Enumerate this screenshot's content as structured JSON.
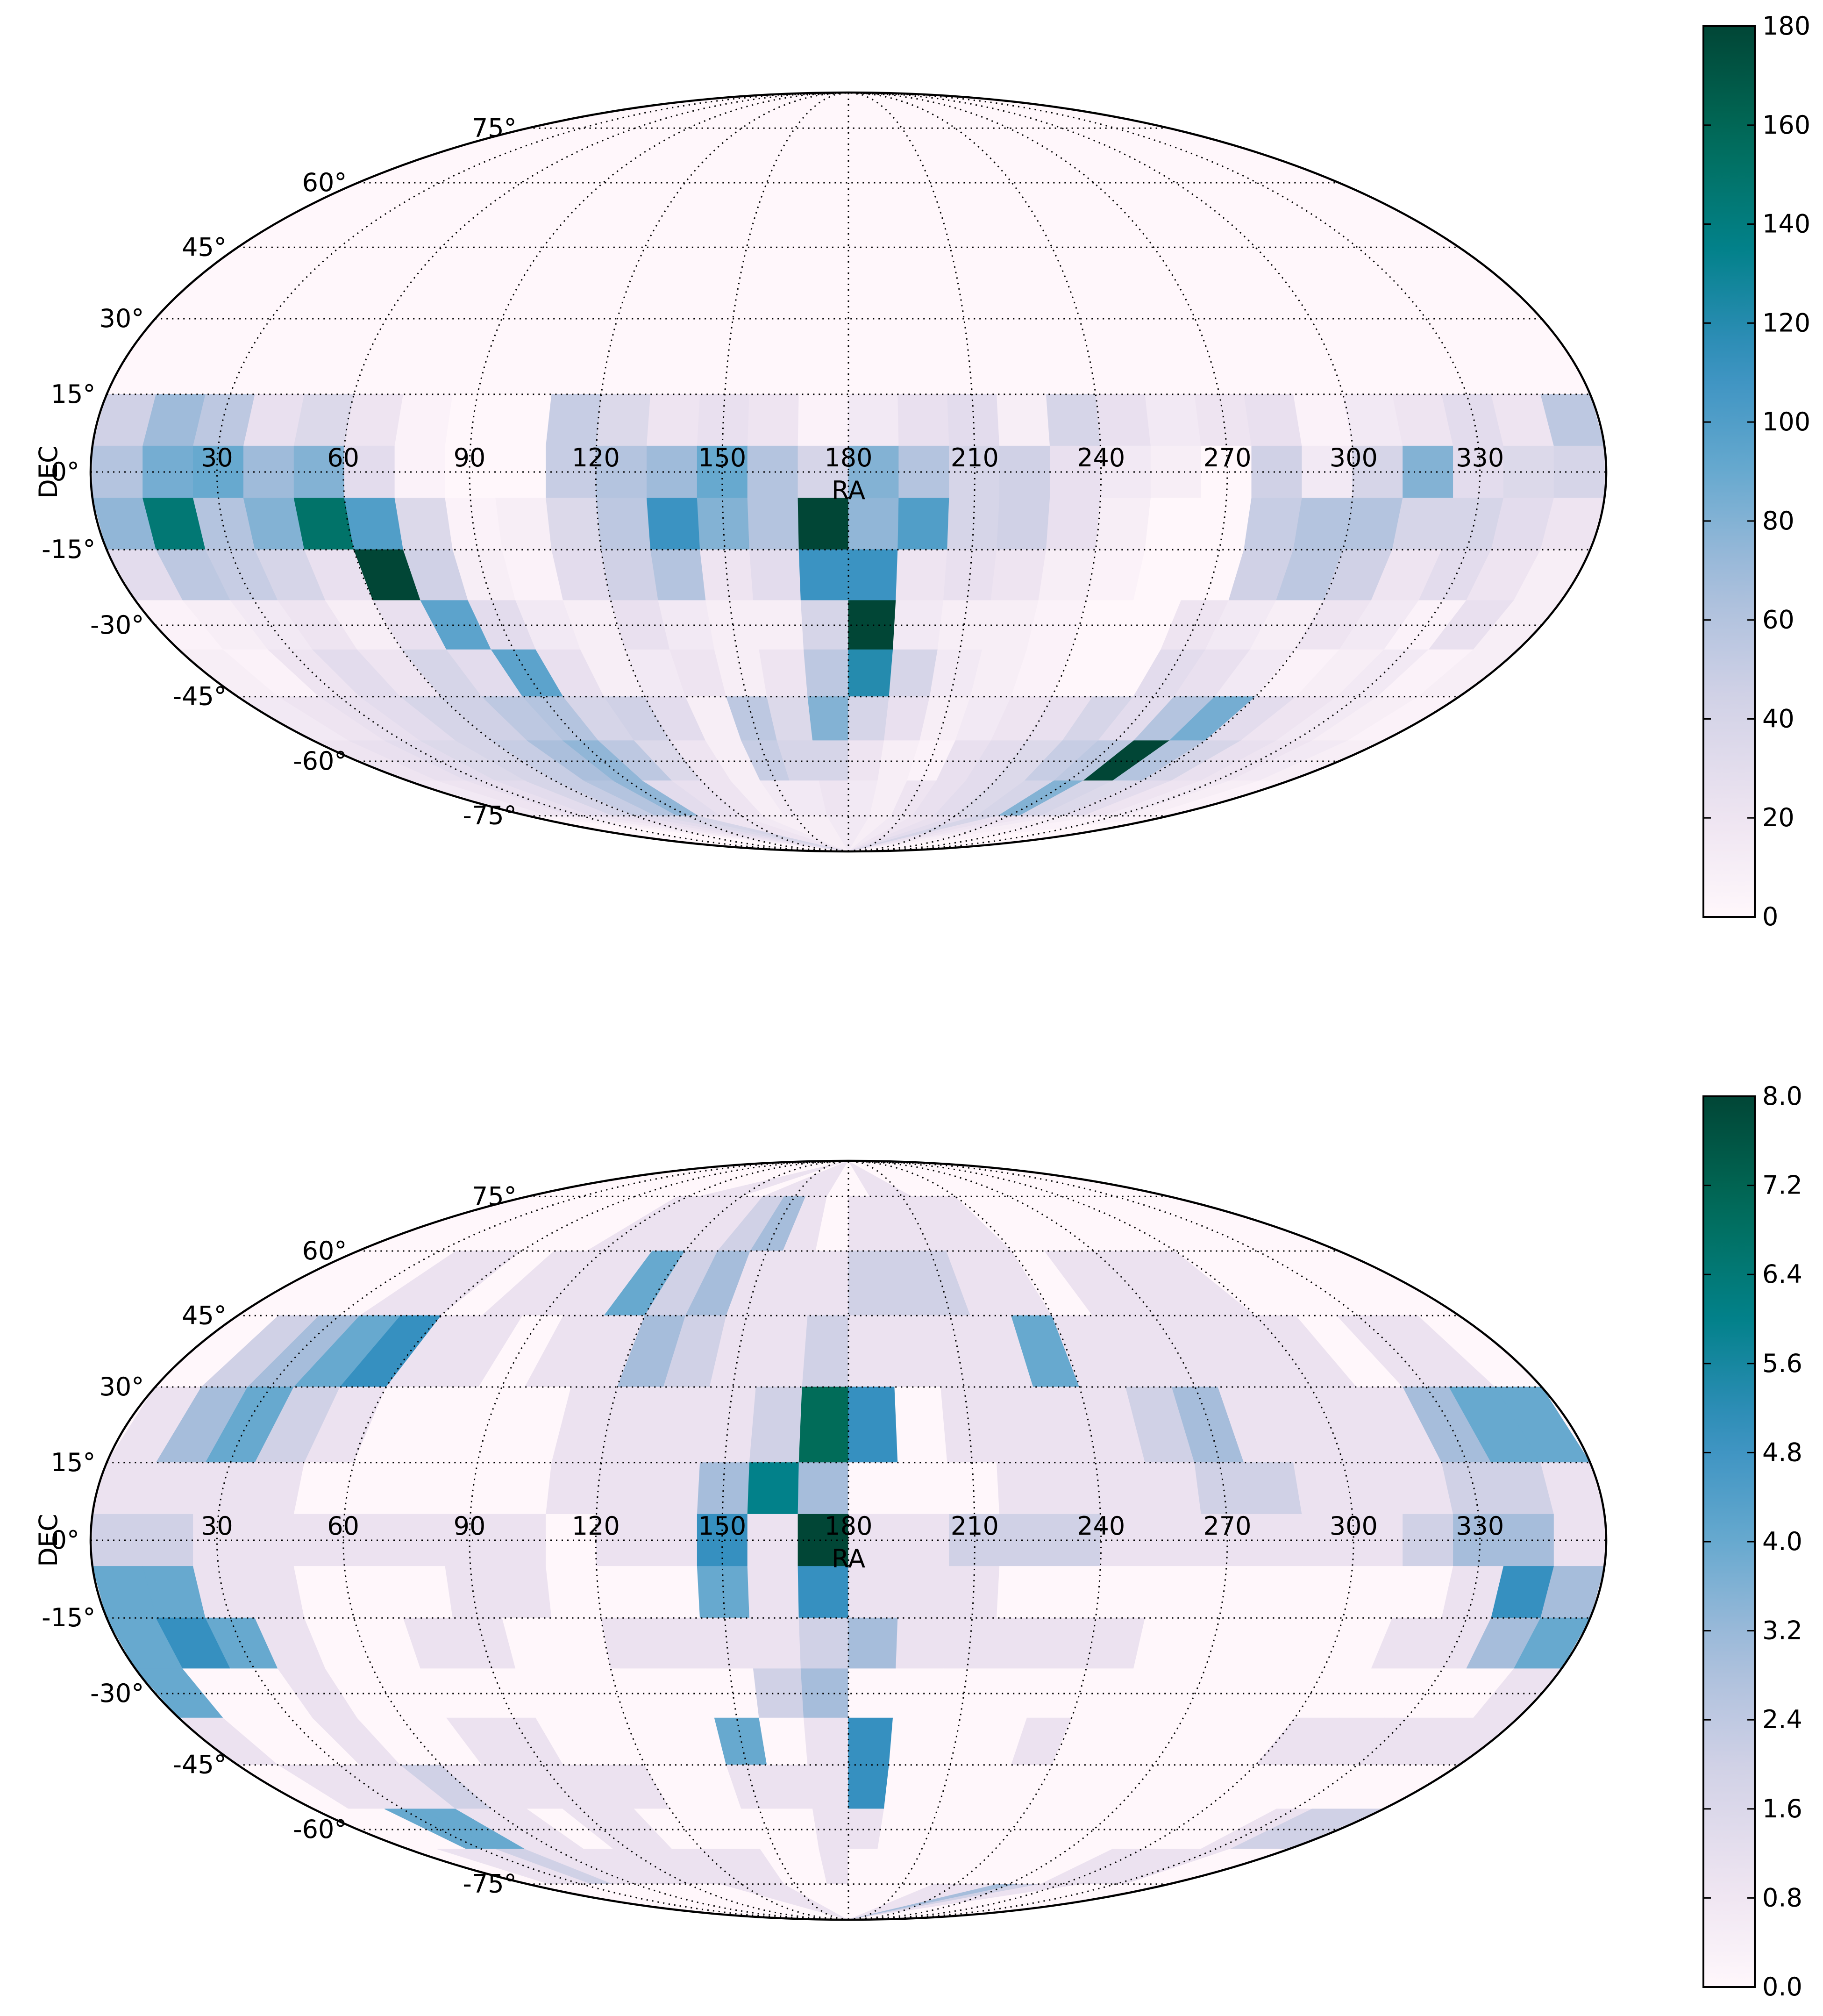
{
  "chart_data": [
    {
      "type": "heatmap",
      "projection": "mollweide",
      "xlabel": "RA",
      "ylabel": "DEC",
      "ra_ticks": [
        "30",
        "60",
        "90",
        "120",
        "150",
        "180",
        "210",
        "240",
        "270",
        "300",
        "330"
      ],
      "dec_ticks": [
        "75°",
        "60°",
        "45°",
        "30°",
        "15°",
        "0°",
        "-15°",
        "-30°",
        "-45°",
        "-60°",
        "-75°"
      ],
      "colorbar": {
        "vmin": 0,
        "vmax": 180,
        "ticks": [
          "0",
          "20",
          "40",
          "60",
          "80",
          "100",
          "120",
          "140",
          "160",
          "180"
        ]
      },
      "grid": {
        "ra_bin_deg": 12,
        "dec_bins_deg": [
          90,
          75,
          60,
          45,
          30,
          15,
          5,
          -5,
          -15,
          -25,
          -35,
          -45,
          -55,
          -65,
          -75,
          -90
        ],
        "counts": [
          [
            0,
            0,
            0,
            0,
            0,
            0,
            0,
            0,
            0,
            0,
            0,
            0,
            0,
            0,
            0,
            0,
            0,
            0,
            0,
            0,
            0,
            0,
            0,
            0,
            0,
            0,
            0,
            0,
            0,
            0
          ],
          [
            0,
            0,
            0,
            0,
            0,
            0,
            0,
            0,
            0,
            0,
            0,
            0,
            0,
            0,
            0,
            0,
            0,
            0,
            0,
            0,
            0,
            0,
            0,
            0,
            0,
            0,
            0,
            0,
            0,
            0
          ],
          [
            0,
            0,
            0,
            0,
            0,
            0,
            0,
            0,
            0,
            0,
            0,
            0,
            0,
            0,
            0,
            0,
            0,
            0,
            0,
            0,
            0,
            0,
            0,
            0,
            0,
            0,
            0,
            0,
            0,
            0
          ],
          [
            0,
            0,
            0,
            0,
            0,
            0,
            0,
            0,
            0,
            0,
            0,
            0,
            0,
            0,
            0,
            0,
            0,
            0,
            0,
            0,
            0,
            0,
            0,
            0,
            0,
            0,
            0,
            0,
            0,
            0
          ],
          [
            0,
            0,
            0,
            0,
            0,
            0,
            0,
            0,
            0,
            0,
            0,
            0,
            0,
            0,
            0,
            0,
            0,
            0,
            0,
            0,
            0,
            0,
            0,
            0,
            0,
            0,
            0,
            0,
            0,
            0
          ],
          [
            45,
            70,
            55,
            25,
            35,
            20,
            5,
            0,
            0,
            50,
            35,
            20,
            25,
            20,
            5,
            15,
            25,
            30,
            10,
            40,
            25,
            15,
            20,
            25,
            5,
            15,
            20,
            30,
            20,
            55
          ],
          [
            60,
            85,
            90,
            70,
            80,
            30,
            5,
            0,
            0,
            50,
            60,
            70,
            90,
            60,
            40,
            80,
            60,
            40,
            45,
            25,
            15,
            10,
            0,
            45,
            15,
            40,
            80,
            30,
            35,
            40
          ],
          [
            75,
            145,
            60,
            80,
            150,
            100,
            35,
            5,
            10,
            35,
            55,
            110,
            80,
            60,
            180,
            75,
            100,
            40,
            45,
            25,
            10,
            0,
            0,
            50,
            60,
            60,
            40,
            40,
            30,
            20
          ],
          [
            30,
            55,
            50,
            40,
            25,
            180,
            45,
            10,
            5,
            30,
            45,
            60,
            20,
            30,
            110,
            110,
            20,
            25,
            20,
            10,
            5,
            0,
            0,
            45,
            55,
            45,
            20,
            30,
            20,
            10
          ],
          [
            5,
            10,
            15,
            20,
            10,
            25,
            95,
            30,
            15,
            10,
            25,
            15,
            10,
            10,
            40,
            180,
            15,
            10,
            10,
            5,
            0,
            0,
            20,
            15,
            10,
            20,
            15,
            5,
            25,
            10
          ],
          [
            10,
            5,
            20,
            30,
            20,
            40,
            30,
            95,
            25,
            10,
            15,
            20,
            10,
            20,
            55,
            120,
            40,
            15,
            10,
            5,
            0,
            0,
            30,
            25,
            15,
            5,
            10,
            15,
            5,
            10
          ],
          [
            15,
            20,
            25,
            30,
            40,
            45,
            55,
            60,
            40,
            45,
            30,
            10,
            55,
            35,
            80,
            40,
            25,
            10,
            15,
            20,
            25,
            40,
            30,
            60,
            85,
            30,
            20,
            15,
            10,
            5
          ],
          [
            20,
            25,
            30,
            35,
            40,
            50,
            65,
            75,
            55,
            35,
            20,
            10,
            50,
            40,
            40,
            20,
            10,
            5,
            25,
            30,
            35,
            50,
            55,
            180,
            60,
            40,
            25,
            20,
            15,
            10
          ],
          [
            15,
            20,
            25,
            30,
            40,
            50,
            60,
            75,
            30,
            25,
            20,
            10,
            15,
            15,
            20,
            15,
            10,
            20,
            25,
            30,
            35,
            40,
            80,
            40,
            35,
            30,
            20,
            15,
            10,
            5
          ],
          [
            5,
            10,
            15,
            20,
            25,
            30,
            35,
            40,
            20,
            20,
            15,
            10,
            10,
            10,
            15,
            15,
            10,
            15,
            20,
            25,
            30,
            40,
            25,
            20,
            15,
            10,
            10,
            5,
            5,
            5
          ]
        ]
      }
    },
    {
      "type": "heatmap",
      "projection": "mollweide",
      "xlabel": "RA",
      "ylabel": "DEC",
      "ra_ticks": [
        "30",
        "60",
        "90",
        "120",
        "150",
        "180",
        "210",
        "240",
        "270",
        "300",
        "330"
      ],
      "dec_ticks": [
        "75°",
        "60°",
        "45°",
        "30°",
        "15°",
        "0°",
        "-15°",
        "-30°",
        "-45°",
        "-60°",
        "-75°"
      ],
      "colorbar": {
        "vmin": 0,
        "vmax": 8,
        "ticks": [
          "0.0",
          "0.8",
          "1.6",
          "2.4",
          "3.2",
          "4.0",
          "4.8",
          "5.6",
          "6.4",
          "7.2",
          "8.0"
        ]
      },
      "grid": {
        "ra_bin_deg": 12,
        "dec_bins_deg": [
          90,
          75,
          60,
          45,
          30,
          15,
          5,
          -5,
          -15,
          -25,
          -35,
          -45,
          -55,
          -65,
          -75,
          -90
        ],
        "counts": [
          [
            0,
            0,
            0,
            0,
            0,
            0,
            0,
            0,
            1,
            1,
            0,
            1,
            1,
            1,
            0,
            0,
            1,
            1,
            0,
            0,
            0,
            0,
            0,
            0,
            0,
            0,
            0,
            0,
            0,
            0
          ],
          [
            0,
            0,
            0,
            0,
            0,
            0,
            0,
            1,
            1,
            1,
            1,
            2,
            3,
            1,
            0,
            1,
            1,
            1,
            1,
            1,
            0,
            0,
            0,
            0,
            0,
            0,
            0,
            0,
            0,
            0
          ],
          [
            0,
            0,
            0,
            1,
            1,
            0,
            1,
            1,
            1,
            4,
            2,
            3,
            1,
            1,
            1,
            2,
            2,
            2,
            1,
            1,
            0,
            1,
            1,
            1,
            1,
            0,
            0,
            0,
            0,
            0
          ],
          [
            0,
            2,
            3,
            4,
            5,
            1,
            1,
            0,
            1,
            1,
            3,
            2,
            1,
            1,
            2,
            1,
            1,
            1,
            1,
            4,
            1,
            1,
            1,
            1,
            1,
            1,
            0,
            1,
            1,
            0
          ],
          [
            1,
            3,
            4,
            2,
            1,
            0,
            0,
            0,
            0,
            1,
            1,
            1,
            1,
            2,
            7,
            5,
            0,
            1,
            1,
            1,
            1,
            2,
            3,
            1,
            1,
            1,
            1,
            3,
            4,
            4
          ],
          [
            1,
            1,
            1,
            1,
            0,
            0,
            0,
            0,
            0,
            1,
            1,
            1,
            3,
            6,
            3,
            0,
            0,
            0,
            1,
            1,
            1,
            1,
            2,
            2,
            1,
            1,
            1,
            2,
            2,
            1
          ],
          [
            2,
            2,
            1,
            1,
            1,
            1,
            1,
            1,
            1,
            0,
            1,
            1,
            5,
            1,
            8,
            1,
            1,
            2,
            2,
            2,
            1,
            1,
            1,
            1,
            1,
            1,
            2,
            3,
            3,
            1
          ],
          [
            4,
            4,
            1,
            1,
            0,
            0,
            0,
            1,
            1,
            0,
            0,
            0,
            4,
            1,
            5,
            1,
            1,
            1,
            0,
            0,
            0,
            0,
            0,
            0,
            0,
            0,
            0,
            1,
            5,
            3
          ],
          [
            4,
            5,
            4,
            1,
            0,
            0,
            1,
            1,
            0,
            0,
            1,
            1,
            1,
            1,
            2,
            3,
            1,
            1,
            1,
            1,
            1,
            0,
            0,
            0,
            0,
            0,
            1,
            1,
            3,
            4
          ],
          [
            4,
            0,
            0,
            1,
            0,
            0,
            0,
            0,
            0,
            0,
            0,
            0,
            0,
            2,
            3,
            0,
            0,
            0,
            0,
            0,
            0,
            0,
            0,
            0,
            0,
            0,
            0,
            0,
            0,
            1
          ],
          [
            1,
            0,
            0,
            1,
            0,
            0,
            1,
            1,
            0,
            0,
            0,
            0,
            4,
            0,
            1,
            5,
            0,
            0,
            0,
            1,
            0,
            0,
            0,
            0,
            0,
            1,
            1,
            1,
            1,
            1
          ],
          [
            0,
            1,
            1,
            1,
            2,
            1,
            1,
            1,
            1,
            1,
            0,
            0,
            1,
            1,
            1,
            5,
            0,
            0,
            0,
            0,
            0,
            0,
            0,
            0,
            0,
            0,
            0,
            0,
            0,
            0
          ],
          [
            0,
            0,
            4,
            4,
            1,
            1,
            0,
            1,
            1,
            0,
            0,
            0,
            0,
            0,
            1,
            1,
            0,
            0,
            0,
            0,
            0,
            0,
            0,
            0,
            0,
            0,
            0,
            1,
            2,
            2
          ],
          [
            0,
            1,
            1,
            2,
            1,
            1,
            1,
            1,
            1,
            1,
            1,
            1,
            0,
            0,
            1,
            0,
            0,
            0,
            0,
            0,
            0,
            0,
            0,
            0,
            1,
            1,
            1,
            1,
            0,
            0
          ],
          [
            0,
            0,
            0,
            0,
            0,
            0,
            0,
            0,
            0,
            1,
            1,
            1,
            0,
            0,
            0,
            0,
            0,
            0,
            0,
            1,
            1,
            1,
            3,
            2,
            1,
            1,
            0,
            0,
            0,
            0
          ]
        ]
      }
    }
  ]
}
